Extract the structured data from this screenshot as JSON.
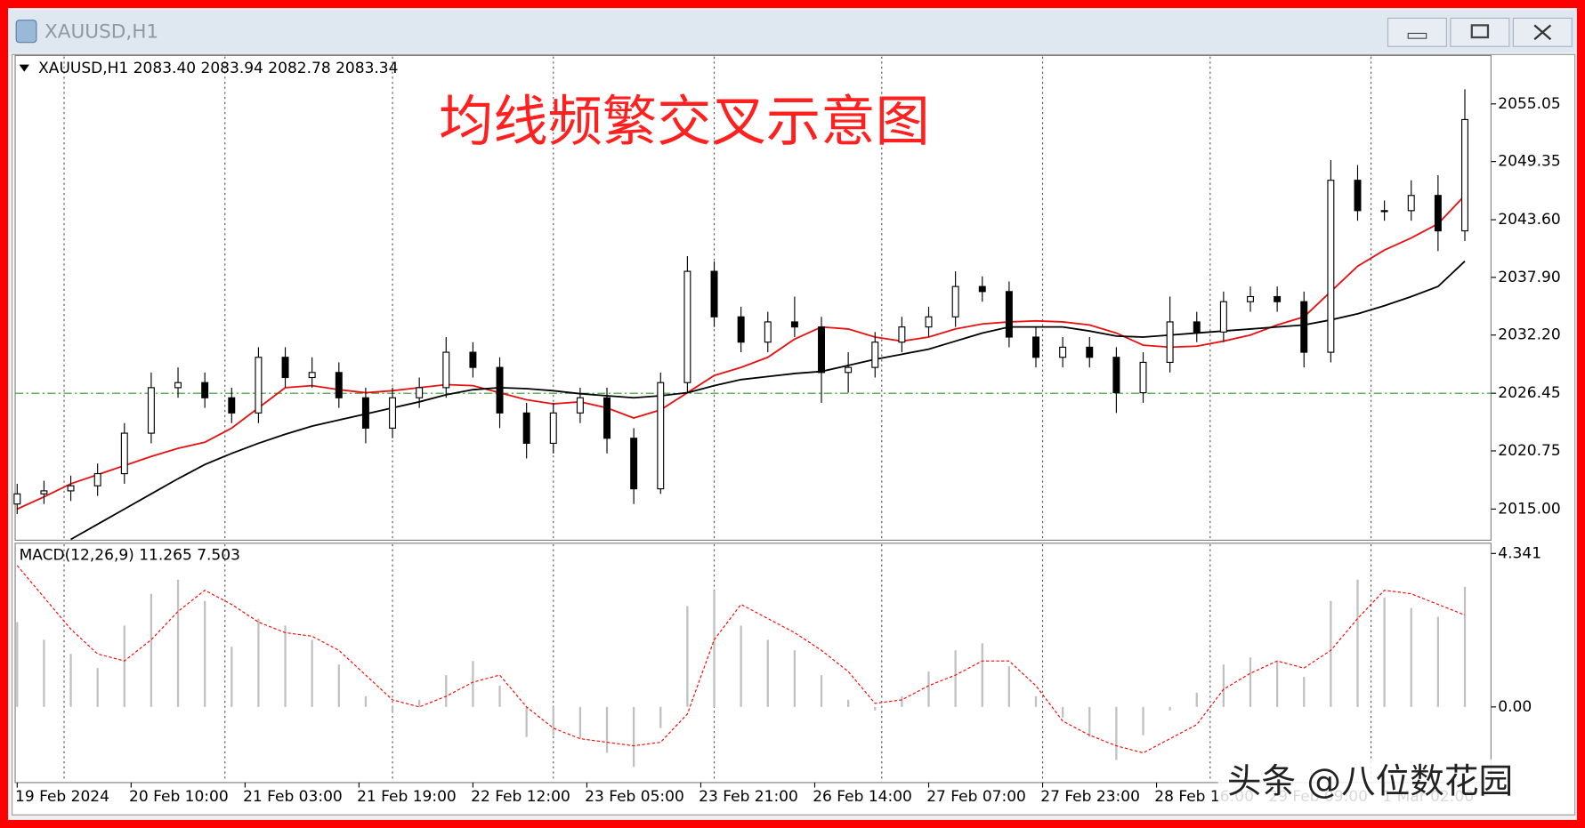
{
  "window": {
    "title": "XAUUSD,H1"
  },
  "watermark": "头条 @八位数花园",
  "chart_data": [
    {
      "type": "candlestick",
      "title": "XAUUSD,H1  2083.40 2083.94 2082.78 2083.34",
      "annotation": "均线频繁交叉示意图",
      "annotation_color": "#ff2020",
      "x": [
        0,
        4,
        8,
        12,
        16,
        20,
        24,
        28,
        32,
        36,
        40,
        44,
        48,
        52,
        56,
        60,
        64,
        68,
        72,
        76,
        80,
        84,
        88,
        92,
        96,
        100,
        104,
        108,
        112,
        116,
        120,
        124,
        128,
        132,
        136,
        140,
        144,
        148,
        152,
        156,
        160,
        164,
        168,
        172,
        176,
        180,
        184,
        188,
        192,
        196,
        200,
        204,
        208,
        212,
        216
      ],
      "open": [
        2015.5,
        2016.5,
        2016.8,
        2017.3,
        2018.5,
        2022.5,
        2027,
        2027.5,
        2026,
        2024.5,
        2030,
        2028,
        2028.5,
        2026,
        2023,
        2026,
        2027,
        2030.5,
        2029,
        2024.5,
        2021.5,
        2024.5,
        2026,
        2022,
        2017,
        2027.5,
        2038.5,
        2034,
        2031.5,
        2033.5,
        2033,
        2028.5,
        2029,
        2031.5,
        2033,
        2034,
        2037,
        2036.5,
        2032,
        2030,
        2031,
        2030,
        2026.5,
        2029.5,
        2033.5,
        2032.5,
        2035.5,
        2036,
        2035.5,
        2030.5,
        2047.5,
        2044.5,
        2044.5,
        2046,
        2042.5
      ],
      "high": [
        2017.5,
        2017.8,
        2018.3,
        2019.5,
        2023.5,
        2028.5,
        2029,
        2028.5,
        2027,
        2031,
        2031,
        2030,
        2029.5,
        2027,
        2027,
        2028,
        2032,
        2031.5,
        2030,
        2025.5,
        2025.5,
        2027,
        2027,
        2023,
        2028.5,
        2040,
        2039.5,
        2035,
        2034.5,
        2036,
        2034,
        2030.5,
        2032.5,
        2034,
        2035,
        2038.5,
        2038,
        2037.5,
        2033,
        2032,
        2032,
        2031,
        2030.5,
        2036,
        2034.5,
        2036.5,
        2037,
        2037,
        2036.5,
        2049.5,
        2049,
        2045.5,
        2047.5,
        2048,
        2056.5
      ],
      "low": [
        2014.5,
        2015.5,
        2015.8,
        2016.3,
        2017.5,
        2021.5,
        2026,
        2025,
        2023.5,
        2023.5,
        2027,
        2027,
        2025,
        2021.5,
        2022,
        2025,
        2026,
        2028,
        2023,
        2020,
        2020.5,
        2023.5,
        2020.5,
        2015.5,
        2016.5,
        2026.5,
        2033,
        2030.5,
        2030.5,
        2032,
        2025.5,
        2026.5,
        2028,
        2030.5,
        2032,
        2033,
        2035.5,
        2031,
        2029,
        2029,
        2029,
        2024.5,
        2025.5,
        2028.5,
        2031.5,
        2031.5,
        2034.5,
        2034.5,
        2029,
        2029.5,
        2043.5,
        2043.5,
        2043.5,
        2040.5,
        2041.5
      ],
      "close": [
        2016.5,
        2016.8,
        2017.3,
        2018.5,
        2022.5,
        2027,
        2027.5,
        2026,
        2024.5,
        2030,
        2028,
        2028.5,
        2026,
        2023,
        2026,
        2027,
        2030.5,
        2029,
        2024.5,
        2021.5,
        2024.5,
        2026,
        2022,
        2017,
        2027.5,
        2038.5,
        2034,
        2031.5,
        2033.5,
        2033,
        2028.5,
        2029,
        2031.5,
        2033,
        2034,
        2037,
        2036.5,
        2032,
        2030,
        2031,
        2030,
        2026.5,
        2029.5,
        2033.5,
        2032.5,
        2035.5,
        2036,
        2035.5,
        2030.5,
        2047.5,
        2044.5,
        2044.5,
        2046,
        2042.5,
        2053.5
      ],
      "up_color": "#ffffff",
      "down_color": "#000000",
      "series": [
        {
          "color": "#e81010",
          "values": [
            2015,
            2016.2,
            2017.5,
            2018.4,
            2019.3,
            2020.2,
            2021,
            2021.6,
            2023,
            2025,
            2027,
            2027.2,
            2026.8,
            2026.5,
            2026.7,
            2027,
            2027.3,
            2027.2,
            2026.5,
            2025.8,
            2025.4,
            2025.6,
            2025,
            2024,
            2024.8,
            2026.5,
            2028.2,
            2029,
            2030,
            2031.8,
            2033,
            2032.8,
            2032,
            2031.6,
            2032,
            2032.8,
            2033.3,
            2033.5,
            2033.6,
            2033.5,
            2033.2,
            2032.4,
            2031.2,
            2031,
            2031.1,
            2031.6,
            2032.2,
            2033.2,
            2034,
            2036.5,
            2039,
            2040.6,
            2041.8,
            2043.2,
            2046
          ]
        },
        {
          "color": "#000000",
          "values": [
            null,
            null,
            2012,
            2013.5,
            2015,
            2016.5,
            2018,
            2019.4,
            2020.5,
            2021.5,
            2022.4,
            2023.2,
            2023.8,
            2024.4,
            2025,
            2025.6,
            2026.3,
            2026.8,
            2027,
            2026.9,
            2026.7,
            2026.4,
            2026.2,
            2026,
            2026.2,
            2026.5,
            2027.2,
            2027.8,
            2028.1,
            2028.4,
            2028.6,
            2029.2,
            2029.8,
            2030.3,
            2030.8,
            2031.6,
            2032.4,
            2033,
            2033,
            2033,
            2032.6,
            2032.1,
            2032,
            2032.2,
            2032.4,
            2032.6,
            2032.8,
            2033,
            2033.2,
            2033.7,
            2034.3,
            2035.1,
            2036,
            2037,
            2039.5
          ]
        }
      ],
      "level": 2026.45,
      "level_color": "#2a9a2a",
      "xlim": [
        -0.3,
        219.9
      ],
      "xgrid": [
        7,
        31,
        56,
        80,
        104,
        129,
        153,
        178,
        202
      ],
      "ylim": [
        2011.92,
        2059.83
      ],
      "yticks": [
        2055.05,
        2049.35,
        {
          "value": 2043.6,
          "label": "2043.60"
        },
        {
          "value": 2037.9,
          "label": "2037.90"
        },
        {
          "value": 2032.2,
          "label": "2032.20"
        },
        2026.45,
        2020.75,
        {
          "value": 2015,
          "label": "2015.00"
        }
      ]
    },
    {
      "type": "macd",
      "title": "MACD(12,26,9) 11.265 7.503",
      "x": [
        0,
        4,
        8,
        12,
        16,
        20,
        24,
        28,
        32,
        36,
        40,
        44,
        48,
        52,
        56,
        60,
        64,
        68,
        72,
        76,
        80,
        84,
        88,
        92,
        96,
        100,
        104,
        108,
        112,
        116,
        120,
        124,
        128,
        132,
        136,
        140,
        144,
        148,
        152,
        156,
        160,
        164,
        168,
        172,
        176,
        180,
        184,
        188,
        192,
        196,
        200,
        204,
        208,
        212,
        216
      ],
      "histogram": {
        "color": "#c0c0c0",
        "values": [
          2.4,
          1.9,
          1.5,
          1.1,
          2.3,
          3.2,
          3.6,
          3,
          1.7,
          2.5,
          2.3,
          1.9,
          1.2,
          0.3,
          -0.15,
          0.2,
          0.9,
          1.3,
          0.6,
          -0.85,
          -0.8,
          -0.9,
          -1.3,
          -1.7,
          -0.6,
          2.85,
          3.3,
          2.3,
          1.9,
          1.6,
          0.9,
          0.2,
          -0.1,
          0.3,
          1,
          1.6,
          1.8,
          1.15,
          0.3,
          -0.3,
          -0.85,
          -1.5,
          -0.8,
          -0.1,
          0.4,
          1.2,
          1.4,
          1.3,
          0.85,
          3,
          3.6,
          3.1,
          2.8,
          2.55,
          3.4
        ]
      },
      "signal": {
        "color": "#ff0000",
        "values": [
          4,
          3.1,
          2.2,
          1.5,
          1.3,
          1.9,
          2.7,
          3.3,
          2.9,
          2.4,
          2.1,
          2,
          1.6,
          0.9,
          0.2,
          0,
          0.3,
          0.7,
          0.9,
          0,
          -0.6,
          -0.9,
          -1,
          -1.1,
          -1,
          -0.2,
          1.9,
          2.9,
          2.5,
          2.1,
          1.6,
          1,
          0.1,
          0.2,
          0.6,
          0.9,
          1.3,
          1.3,
          0.6,
          -0.4,
          -0.8,
          -1.1,
          -1.3,
          -0.9,
          -0.5,
          0.5,
          0.95,
          1.3,
          1.1,
          1.6,
          2.5,
          3.3,
          3.2,
          2.9,
          2.6
        ]
      },
      "xlim": [
        -0.3,
        219.9
      ],
      "ylim": [
        -2.14,
        4.63
      ],
      "yticks": [
        4.341,
        {
          "value": 0,
          "label": "0.00"
        }
      ],
      "xticks": [
        {
          "value": 0,
          "label": "19 Feb 2024"
        },
        {
          "value": 17,
          "label": "20 Feb 10:00"
        },
        {
          "value": 34,
          "label": "21 Feb 03:00"
        },
        {
          "value": 51,
          "label": "21 Feb 19:00"
        },
        {
          "value": 68,
          "label": "22 Feb 12:00"
        },
        {
          "value": 85,
          "label": "23 Feb 05:00"
        },
        {
          "value": 102,
          "label": "23 Feb 21:00"
        },
        {
          "value": 119,
          "label": "26 Feb 14:00"
        },
        {
          "value": 136,
          "label": "27 Feb 07:00"
        },
        {
          "value": 153,
          "label": "27 Feb 23:00"
        },
        {
          "value": 170,
          "label": "28 Feb 16:00"
        },
        {
          "value": 187,
          "label": "29 Feb 09:00"
        },
        {
          "value": 204,
          "label": "1 Mar 02:00"
        }
      ]
    }
  ]
}
